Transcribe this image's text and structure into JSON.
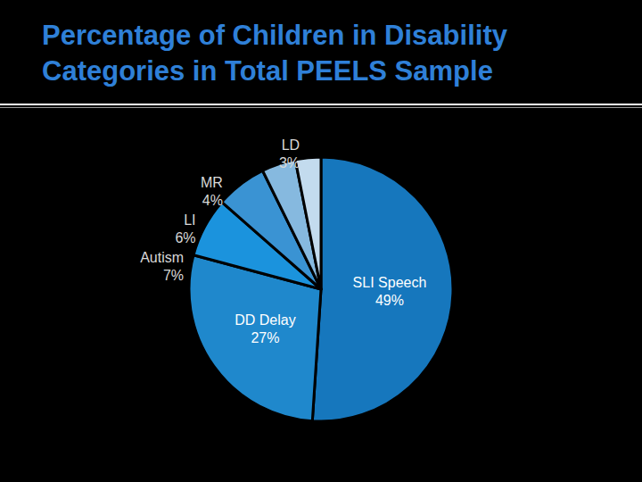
{
  "chart_data": {
    "type": "pie",
    "title": "Percentage of Children in Disability Categories in Total PEELS Sample",
    "categories": [
      "SLI Speech",
      "DD Delay",
      "Autism",
      "LI",
      "MR",
      "LD"
    ],
    "values": [
      49,
      27,
      7,
      6,
      4,
      3
    ],
    "value_labels": [
      "49%",
      "27%",
      "7%",
      "6%",
      "4%",
      "3%"
    ],
    "colors": [
      "#1677bd",
      "#1f88cc",
      "#1b93dd",
      "#3a93d3",
      "#86b9df",
      "#c3dbee"
    ],
    "data_labels": true
  }
}
